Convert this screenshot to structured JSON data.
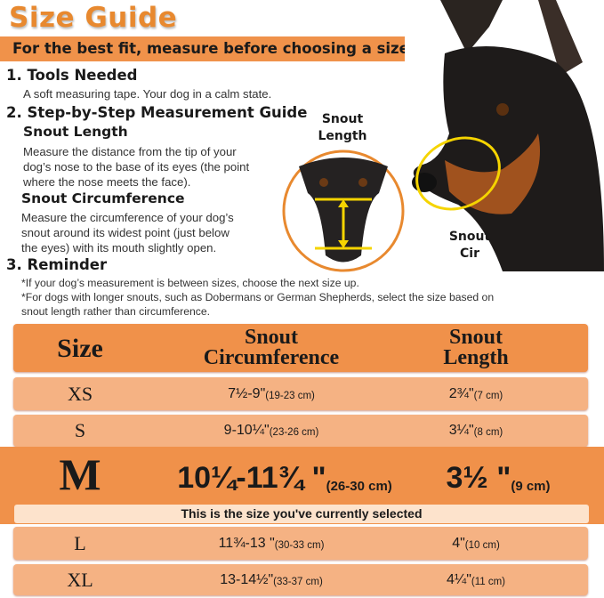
{
  "title": "Size Guide",
  "banner": "For the best fit, measure before choosing a size",
  "sections": {
    "tools": {
      "heading": "1. Tools Needed",
      "text": "A soft measuring tape. Your dog in a calm state."
    },
    "guide": {
      "heading": "2. Step-by-Step Measurement Guide",
      "length_heading": "Snout Length",
      "length_text": [
        "Measure the distance from the tip of your",
        "dog’s nose to the base of its eyes (the point",
        "where the nose meets the face)."
      ],
      "circ_heading": "Snout Circumference",
      "circ_text": [
        "Measure the circumference of your dog’s",
        "snout around its widest point (just below",
        "the eyes) with its mouth slightly open."
      ]
    },
    "reminder": {
      "heading": "3. Reminder",
      "notes": [
        "*If your dog’s measurement is between sizes, choose the next size up.",
        "*For dogs with longer snouts, such as Dobermans or German Shepherds, select the size based on",
        "snout length rather than circumference."
      ]
    }
  },
  "image_labels": {
    "length": [
      "Snout",
      "Length"
    ],
    "circ": [
      "Snout",
      "Cir"
    ]
  },
  "table": {
    "headers": {
      "size": "Size",
      "circ": [
        "Snout",
        "Circumference"
      ],
      "length": [
        "Snout",
        "Length"
      ]
    },
    "rows": [
      {
        "size": "XS",
        "circ": "7½-9\"",
        "circ_cm": "(19-23 cm)",
        "length": "2¾\"",
        "length_cm": "(7 cm)"
      },
      {
        "size": "S",
        "circ": "9-10¼\"",
        "circ_cm": "(23-26 cm)",
        "length": "3¼\"",
        "length_cm": "(8 cm)"
      },
      {
        "size": "M",
        "circ": "10¼-11¾ \"",
        "circ_cm": "(26-30 cm)",
        "length": "3½ \"",
        "length_cm": "(9 cm)"
      },
      {
        "size": "L",
        "circ": "11¾-13 \"",
        "circ_cm": "(30-33 cm)",
        "length": "4\"",
        "length_cm": "(10 cm)"
      },
      {
        "size": "XL",
        "circ": "13-14½\"",
        "circ_cm": "(33-37 cm)",
        "length": "4¼\"",
        "length_cm": "(11 cm)"
      }
    ],
    "selected_note": "This is the size you've currently selected"
  },
  "colors": {
    "accent": "#e8892f",
    "bar": "#f0924a",
    "row": "#f5b283",
    "selected_note_bg": "#fde3cc",
    "measure": "#f5d400"
  }
}
